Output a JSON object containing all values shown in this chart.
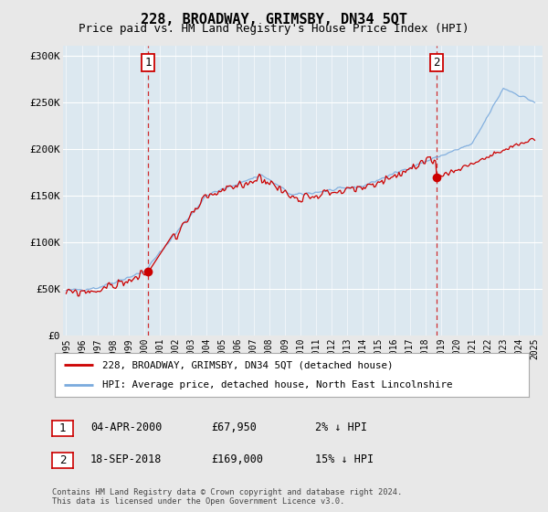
{
  "title": "228, BROADWAY, GRIMSBY, DN34 5QT",
  "subtitle": "Price paid vs. HM Land Registry's House Price Index (HPI)",
  "ylabel_ticks": [
    "£0",
    "£50K",
    "£100K",
    "£150K",
    "£200K",
    "£250K",
    "£300K"
  ],
  "ytick_values": [
    0,
    50000,
    100000,
    150000,
    200000,
    250000,
    300000
  ],
  "ylim": [
    0,
    310000
  ],
  "x_start_year": 1995,
  "x_end_year": 2025,
  "sale1_year": 2000.25,
  "sale1_value": 67950,
  "sale2_year": 2018.72,
  "sale2_value": 169000,
  "legend_label_red": "228, BROADWAY, GRIMSBY, DN34 5QT (detached house)",
  "legend_label_blue": "HPI: Average price, detached house, North East Lincolnshire",
  "annotation1_date": "04-APR-2000",
  "annotation1_price": "£67,950",
  "annotation1_hpi": "2% ↓ HPI",
  "annotation2_date": "18-SEP-2018",
  "annotation2_price": "£169,000",
  "annotation2_hpi": "15% ↓ HPI",
  "footer": "Contains HM Land Registry data © Crown copyright and database right 2024.\nThis data is licensed under the Open Government Licence v3.0.",
  "bg_color": "#e8e8e8",
  "plot_bg_color": "#dce8f0",
  "red_color": "#cc0000",
  "blue_color": "#7aaadd",
  "vline_color": "#cc0000",
  "grid_color": "#ffffff",
  "title_fontsize": 11,
  "subtitle_fontsize": 9
}
